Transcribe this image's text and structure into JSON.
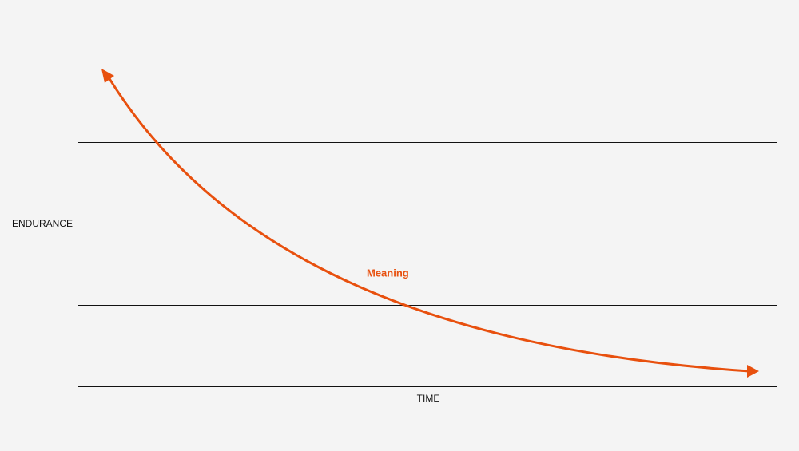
{
  "axes": {
    "y_label": "ENDURANCE",
    "x_label": "TIME"
  },
  "curve": {
    "label": "Meaning"
  }
}
